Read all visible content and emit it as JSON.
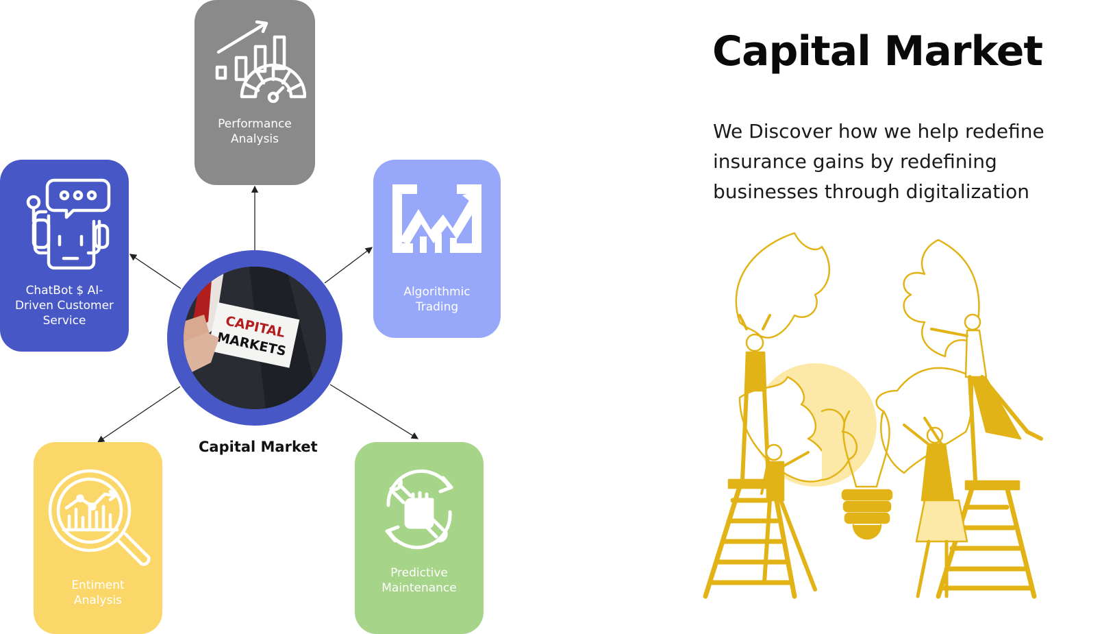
{
  "header": {
    "title": "Capital Market",
    "description": "We Discover how we help redefine insurance gains by redefining businesses through digitalization"
  },
  "hub": {
    "label": "Capital Market",
    "photo_text_line1": "CAPITAL",
    "photo_text_line2": "MARKETS"
  },
  "cards": {
    "performance": {
      "label": "Performance\nAnalysis",
      "icon": "performance-chart-gauge-icon",
      "color": "#8a8a8a"
    },
    "chatbot": {
      "label": "ChatBot $ AI-\nDriven Customer\nService",
      "icon": "chatbot-robot-icon",
      "color": "#4758c6"
    },
    "algorithmic": {
      "label": "Algorithmic\nTrading",
      "icon": "trading-chart-icon",
      "color": "#97a8fb"
    },
    "sentiment": {
      "label": "Entiment\nAnalysis",
      "icon": "magnifier-chart-icon",
      "color": "#fbd769"
    },
    "predictive": {
      "label": "Predictive\nMaintenance",
      "icon": "wrench-fist-cycle-icon",
      "color": "#a6d489"
    }
  },
  "colors": {
    "hub_ring": "#4758c6",
    "illustration": "#e2b317",
    "illustration_light": "#fce9a7"
  }
}
